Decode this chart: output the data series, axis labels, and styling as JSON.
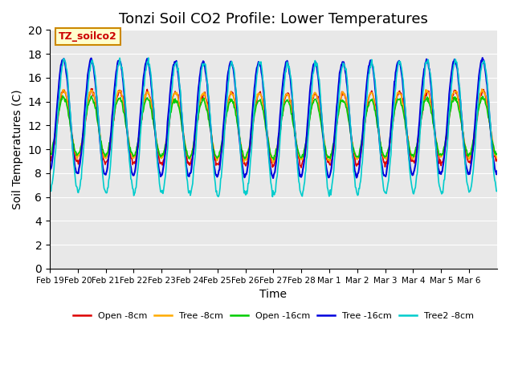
{
  "title": "Tonzi Soil CO2 Profile: Lower Temperatures",
  "xlabel": "Time",
  "ylabel": "Soil Temperatures (C)",
  "annotation": "TZ_soilco2",
  "ylim": [
    0,
    20
  ],
  "yticks": [
    0,
    2,
    4,
    6,
    8,
    10,
    12,
    14,
    16,
    18,
    20
  ],
  "xtick_labels": [
    "Feb 19",
    "Feb 20",
    "Feb 21",
    "Feb 22",
    "Feb 23",
    "Feb 24",
    "Feb 25",
    "Feb 26",
    "Feb 27",
    "Feb 28",
    "Mar 1",
    "Mar 2",
    "Mar 3",
    "Mar 4",
    "Mar 5",
    "Mar 6"
  ],
  "series_colors": [
    "#dd0000",
    "#ffaa00",
    "#00cc00",
    "#0000dd",
    "#00cccc"
  ],
  "series_labels": [
    "Open -8cm",
    "Tree -8cm",
    "Open -16cm",
    "Tree -16cm",
    "Tree2 -8cm"
  ],
  "background_color": "#e8e8e8",
  "title_fontsize": 13,
  "label_fontsize": 10
}
